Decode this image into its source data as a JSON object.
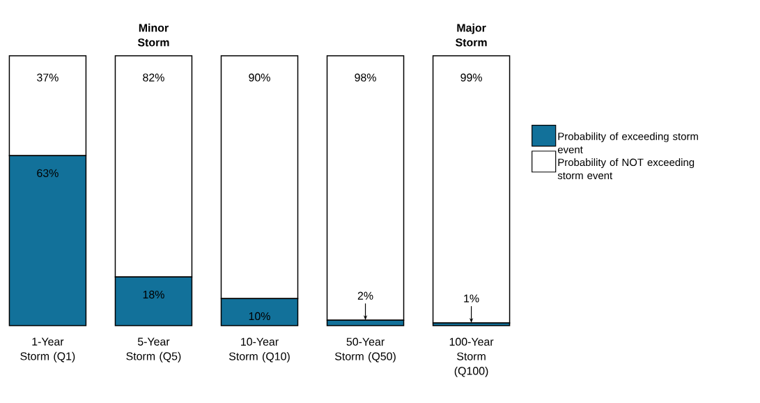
{
  "chart_data": {
    "type": "bar",
    "stacked": true,
    "categories": [
      "1-Year Storm (Q1)",
      "5-Year Storm (Q5)",
      "10-Year Storm (Q10)",
      "50-Year Storm (Q50)",
      "100-Year Storm (Q100)"
    ],
    "series": [
      {
        "name": "Probability of exceeding storm event",
        "color": "#12719a",
        "values": [
          63,
          18,
          10,
          2,
          1
        ],
        "value_labels": [
          "63%",
          "18%",
          "10%",
          "2%",
          "1%"
        ]
      },
      {
        "name": "Probability of NOT exceeding storm event",
        "color": "#ffffff",
        "values": [
          37,
          82,
          90,
          98,
          99
        ],
        "value_labels": [
          "37%",
          "82%",
          "90%",
          "98%",
          "99%"
        ]
      }
    ],
    "ylim": [
      0,
      100
    ],
    "tick_labels": "x",
    "legend": "right",
    "annotations": [
      "Minor Storm",
      "Major Storm"
    ]
  }
}
